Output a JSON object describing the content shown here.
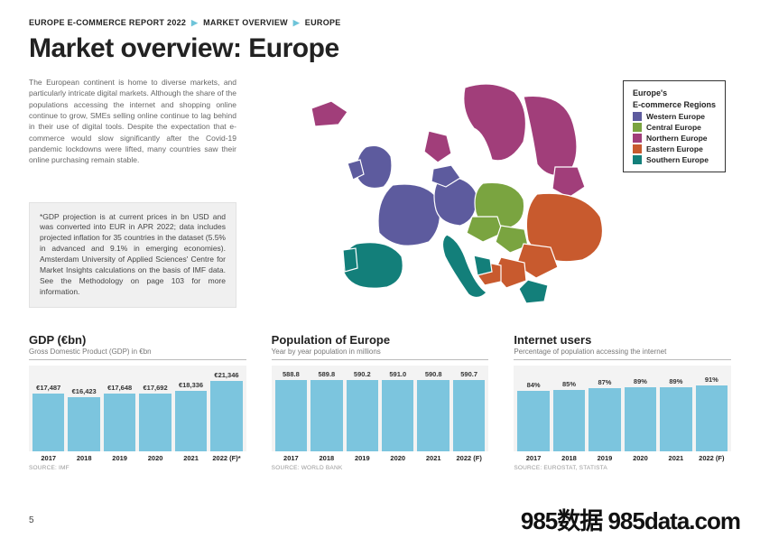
{
  "breadcrumb": {
    "part1": "EUROPE E-COMMERCE REPORT 2022",
    "part2": "MARKET OVERVIEW",
    "part3": "EUROPE",
    "sep": "▶"
  },
  "title": "Market overview: Europe",
  "intro": "The European continent is home to diverse markets, and particularly intricate digital markets. Although the share of the populations accessing the internet and shopping online continue to grow, SMEs selling online continue to lag behind in their use of digital tools. Despite the expectation that e-commerce would slow significantly after the Covid-19 pandemic lockdowns were lifted, many countries saw their online purchasing remain stable.",
  "note": "*GDP projection is at current prices in bn USD and was converted into EUR in APR 2022; data includes projected inflation for 35 countries in the dataset (5.5% in advanced and 9.1% in emerging economies). Amsterdam University of Applied Sciences' Centre for Market Insights calculations on the basis of IMF data. See the Methodology on page 103 for more information.",
  "legend": {
    "title1": "Europe's",
    "title2": "E-commerce Regions",
    "items": [
      {
        "label": "Western Europe",
        "color": "#5d5b9e"
      },
      {
        "label": "Central Europe",
        "color": "#7aa440"
      },
      {
        "label": "Northern Europe",
        "color": "#a13e7a"
      },
      {
        "label": "Eastern Europe",
        "color": "#c85a2e"
      },
      {
        "label": "Southern Europe",
        "color": "#137f7a"
      }
    ]
  },
  "map_colors": {
    "western": "#5d5b9e",
    "central": "#7aa440",
    "northern": "#a13e7a",
    "eastern": "#c85a2e",
    "southern": "#137f7a",
    "border": "#ffffff"
  },
  "charts": {
    "gdp": {
      "title": "GDP (€bn)",
      "subtitle": "Gross Domestic Product (GDP) in €bn",
      "source": "SOURCE: IMF",
      "bar_color": "#7cc5de",
      "bg_color": "#f3f3f3",
      "ymax": 22000,
      "years": [
        "2017",
        "2018",
        "2019",
        "2020",
        "2021",
        "2022 (F)*"
      ],
      "values": [
        17487,
        16423,
        17648,
        17692,
        18336,
        21346
      ],
      "labels": [
        "€17,487",
        "€16,423",
        "€17,648",
        "€17,692",
        "€18,336",
        "€21,346"
      ]
    },
    "population": {
      "title": "Population of Europe",
      "subtitle": "Year by year population in millions",
      "source": "SOURCE: WORLD BANK",
      "bar_color": "#7cc5de",
      "bg_color": "#f3f3f3",
      "ymax": 600,
      "years": [
        "2017",
        "2018",
        "2019",
        "2020",
        "2021",
        "2022 (F)"
      ],
      "values": [
        588.8,
        589.8,
        590.2,
        591.0,
        590.8,
        590.7
      ],
      "labels": [
        "588.8",
        "589.8",
        "590.2",
        "591.0",
        "590.8",
        "590.7"
      ]
    },
    "internet": {
      "title": "Internet users",
      "subtitle": "Percentage of population accessing the internet",
      "source": "SOURCE: EUROSTAT, STATISTA",
      "bar_color": "#7cc5de",
      "bg_color": "#f3f3f3",
      "ymax": 100,
      "years": [
        "2017",
        "2018",
        "2019",
        "2020",
        "2021",
        "2022 (F)"
      ],
      "values": [
        84,
        85,
        87,
        89,
        89,
        91
      ],
      "labels": [
        "84%",
        "85%",
        "87%",
        "89%",
        "89%",
        "91%"
      ]
    }
  },
  "page_number": "5",
  "watermark": "985数据 985data.com"
}
